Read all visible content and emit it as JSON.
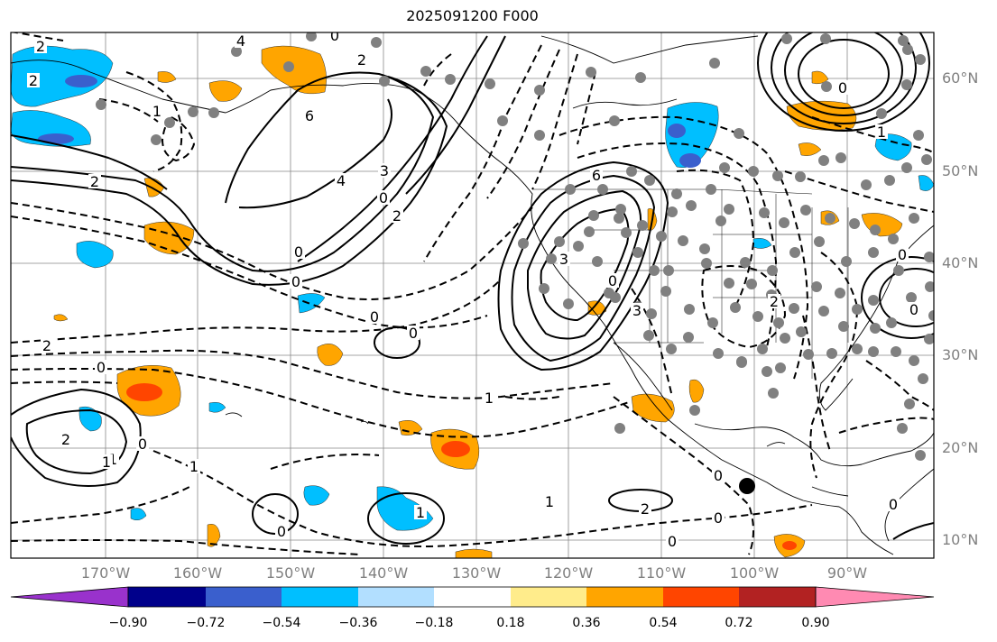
{
  "title": "2025091200 F000",
  "lon_labels": [
    "170°W",
    "160°W",
    "150°W",
    "140°W",
    "130°W",
    "120°W",
    "110°W",
    "100°W",
    "90°W"
  ],
  "lat_labels": [
    "60°N",
    "50°N",
    "40°N",
    "30°N",
    "20°N",
    "10°N"
  ],
  "colorbar": {
    "colors": [
      "#9932CC",
      "#00008B",
      "#3A5FCD",
      "#00BFFF",
      "#B2DFFF",
      "#FFFFFF",
      "#FFEC8B",
      "#FFA500",
      "#FF4500",
      "#B22222",
      "#FF8AB2"
    ],
    "tick_labels": [
      "−0.90",
      "−0.72",
      "−0.54",
      "−0.36",
      "−0.18",
      "0.18",
      "0.36",
      "0.54",
      "0.72",
      "0.90"
    ]
  },
  "contour_labels": [
    "2",
    "4",
    "0",
    "2",
    "6",
    "4",
    "3",
    "0",
    "2",
    "1",
    "2",
    "2",
    "0",
    "2",
    "1",
    "1",
    "0",
    "0",
    "0",
    "0",
    "1",
    "2",
    "0",
    "1",
    "3",
    "0",
    "3",
    "2",
    "0",
    "6",
    "0",
    "1",
    "0",
    "0",
    "1",
    "2",
    "0",
    "0",
    "0",
    "1",
    "0"
  ]
}
